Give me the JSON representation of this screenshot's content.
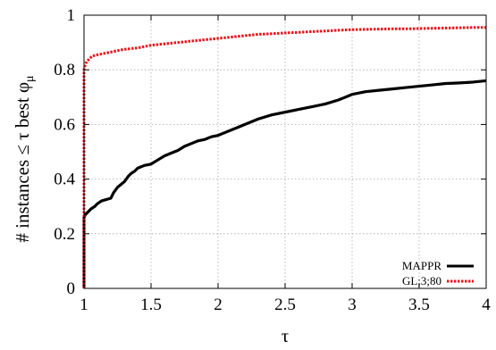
{
  "chart_data": {
    "type": "line",
    "title": "",
    "xlabel": "τ",
    "ylabel": "# instances ≤ τ best φ",
    "ylabel_subscript": "μ",
    "xlim": [
      1,
      4
    ],
    "ylim": [
      0,
      1
    ],
    "xticks": [
      1,
      1.5,
      2,
      2.5,
      3,
      3.5,
      4
    ],
    "yticks": [
      0,
      0.2,
      0.4,
      0.6,
      0.8,
      1
    ],
    "xtick_labels": [
      "1",
      "1.5",
      "2",
      "2.5",
      "3",
      "3.5",
      "4"
    ],
    "ytick_labels": [
      "0",
      "0.2",
      "0.4",
      "0.6",
      "0.8",
      "1"
    ],
    "grid": true,
    "legend_position": "bottom-right",
    "series": [
      {
        "name": "MAPPR",
        "color": "#000000",
        "dashed": false,
        "x": [
          1.0,
          1.0,
          1.01,
          1.03,
          1.05,
          1.08,
          1.1,
          1.13,
          1.2,
          1.22,
          1.25,
          1.3,
          1.33,
          1.35,
          1.38,
          1.4,
          1.45,
          1.5,
          1.55,
          1.6,
          1.65,
          1.7,
          1.75,
          1.8,
          1.85,
          1.9,
          1.95,
          2.0,
          2.05,
          2.1,
          2.15,
          2.2,
          2.3,
          2.4,
          2.5,
          2.6,
          2.7,
          2.8,
          2.9,
          2.95,
          3.0,
          3.05,
          3.1,
          3.2,
          3.3,
          3.4,
          3.5,
          3.6,
          3.7,
          3.8,
          3.9,
          4.0
        ],
        "y": [
          0.0,
          0.26,
          0.27,
          0.28,
          0.29,
          0.3,
          0.31,
          0.32,
          0.33,
          0.35,
          0.37,
          0.39,
          0.41,
          0.42,
          0.43,
          0.44,
          0.45,
          0.455,
          0.47,
          0.485,
          0.495,
          0.505,
          0.52,
          0.53,
          0.54,
          0.545,
          0.555,
          0.56,
          0.57,
          0.58,
          0.59,
          0.6,
          0.62,
          0.635,
          0.645,
          0.655,
          0.665,
          0.675,
          0.69,
          0.7,
          0.71,
          0.715,
          0.72,
          0.725,
          0.73,
          0.735,
          0.74,
          0.745,
          0.75,
          0.752,
          0.755,
          0.76
        ]
      },
      {
        "name": "GL;3;80",
        "color": "#e8141a",
        "dashed": true,
        "x": [
          1.0,
          1.0,
          1.01,
          1.02,
          1.04,
          1.06,
          1.1,
          1.15,
          1.2,
          1.3,
          1.4,
          1.5,
          1.6,
          1.7,
          1.8,
          1.9,
          2.0,
          2.1,
          2.2,
          2.3,
          2.4,
          2.5,
          2.6,
          2.7,
          2.8,
          2.9,
          3.0,
          3.1,
          3.2,
          3.3,
          3.4,
          3.5,
          3.6,
          3.7,
          3.8,
          3.9,
          4.0
        ],
        "y": [
          0.0,
          0.8,
          0.82,
          0.83,
          0.84,
          0.85,
          0.855,
          0.86,
          0.865,
          0.875,
          0.88,
          0.89,
          0.895,
          0.9,
          0.905,
          0.91,
          0.915,
          0.92,
          0.925,
          0.93,
          0.932,
          0.935,
          0.937,
          0.94,
          0.942,
          0.945,
          0.947,
          0.948,
          0.949,
          0.95,
          0.95,
          0.951,
          0.952,
          0.953,
          0.954,
          0.955,
          0.955
        ]
      }
    ]
  }
}
